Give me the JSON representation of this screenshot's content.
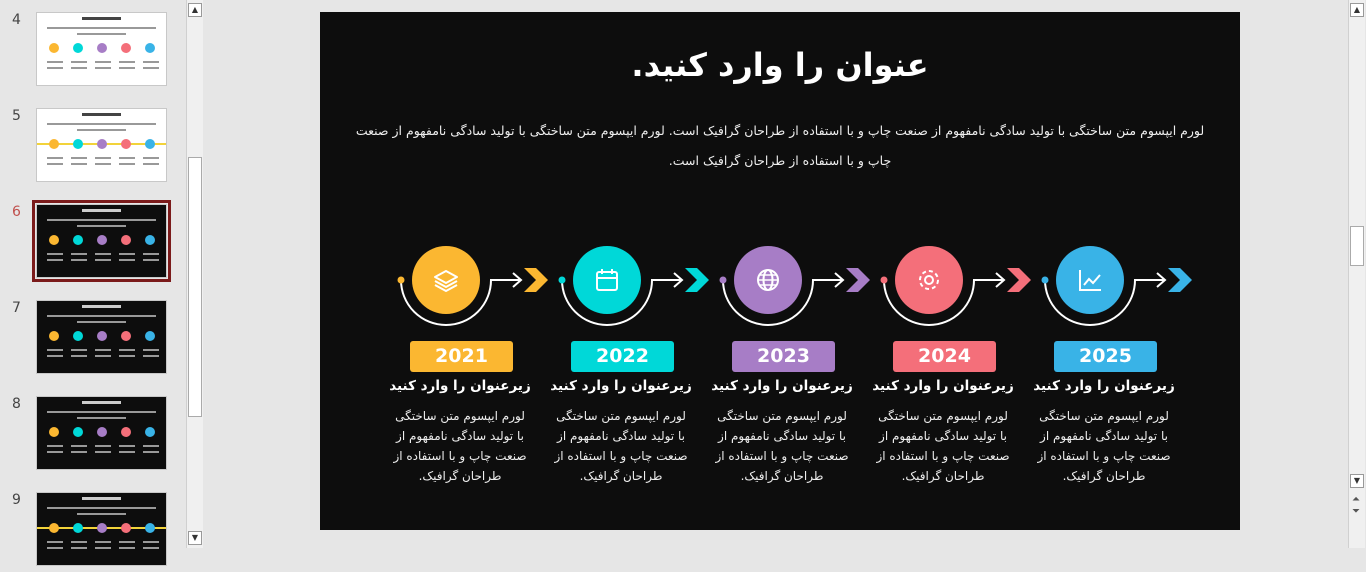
{
  "thumbnails": [
    {
      "number": "4",
      "theme": "light"
    },
    {
      "number": "5",
      "theme": "light"
    },
    {
      "number": "6",
      "theme": "dark",
      "selected": true
    },
    {
      "number": "7",
      "theme": "dark"
    },
    {
      "number": "8",
      "theme": "dark"
    },
    {
      "number": "9",
      "theme": "dark"
    }
  ],
  "slide": {
    "title": "عنوان را وارد کنید.",
    "intro": "لورم ایپسوم متن ساختگی با تولید سادگی نامفهوم از صنعت چاپ و با استفاده از طراحان گرافیک است. لورم ایپسوم متن ساختگی با تولید سادگی نامفهوم از صنعت چاپ و با استفاده از طراحان گرافیک است.",
    "items": [
      {
        "year": "2021",
        "color": "#fbb731",
        "icon": "layers-icon",
        "subtitle": "زیرعنوان را وارد کنید",
        "body": "لورم ایپسوم متن ساختگی با تولید سادگی نامفهوم از صنعت چاپ و با استفاده از طراحان گرافیک."
      },
      {
        "year": "2022",
        "color": "#00d8d8",
        "icon": "calendar-icon",
        "subtitle": "زیرعنوان را وارد کنید",
        "body": "لورم ایپسوم متن ساختگی با تولید سادگی نامفهوم از صنعت چاپ و با استفاده از طراحان گرافیک."
      },
      {
        "year": "2023",
        "color": "#a77dc6",
        "icon": "globe-icon",
        "subtitle": "زیرعنوان را وارد کنید",
        "body": "لورم ایپسوم متن ساختگی با تولید سادگی نامفهوم از صنعت چاپ و با استفاده از طراحان گرافیک."
      },
      {
        "year": "2024",
        "color": "#f46f7a",
        "icon": "gear-icon",
        "subtitle": "زیرعنوان را وارد کنید",
        "body": "لورم ایپسوم متن ساختگی با تولید سادگی نامفهوم از صنعت چاپ و با استفاده از طراحان گرافیک."
      },
      {
        "year": "2025",
        "color": "#39b3e7",
        "icon": "chart-line-icon",
        "subtitle": "زیرعنوان را وارد کنید",
        "body": "لورم ایپسوم متن ساختگی با تولید سادگی نامفهوم از صنعت چاپ و با استفاده از طراحان گرافیک."
      }
    ]
  }
}
